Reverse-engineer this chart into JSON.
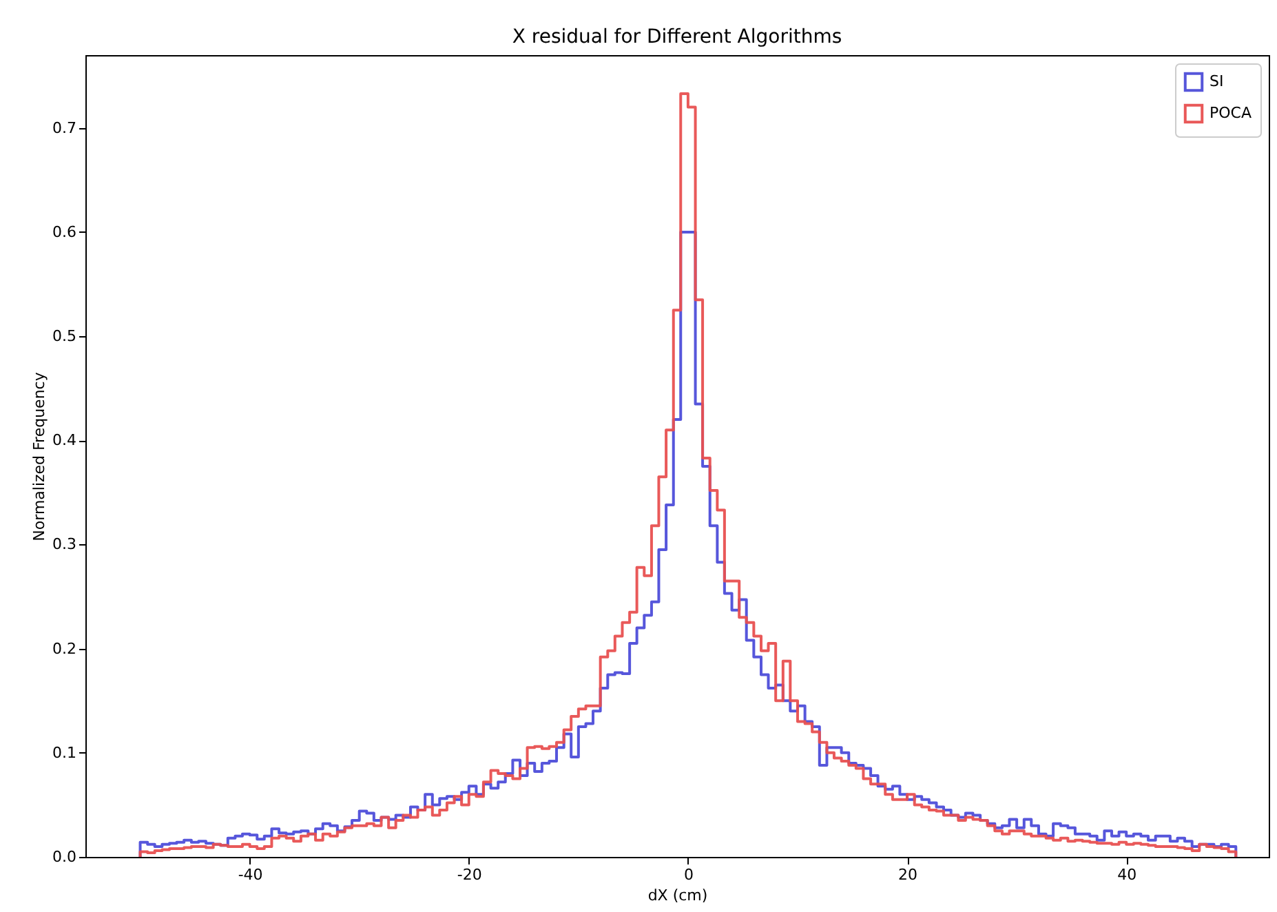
{
  "chart_data": {
    "type": "histogram",
    "title": "X residual for Different Algorithms",
    "xlabel": "dX (cm)",
    "ylabel": "Normalized Frequency",
    "bins": [
      -50,
      -49.33,
      -48.67,
      -48,
      -47.33,
      -46.67,
      -46,
      -45.33,
      -44.67,
      -44,
      -43.33,
      -42.67,
      -42,
      -41.33,
      -40.67,
      -40,
      -39.33,
      -38.67,
      -38,
      -37.33,
      -36.67,
      -36,
      -35.33,
      -34.67,
      -34,
      -33.33,
      -32.67,
      -32,
      -31.33,
      -30.67,
      -30,
      -29.33,
      -28.67,
      -28,
      -27.33,
      -26.67,
      -26,
      -25.33,
      -24.67,
      -24,
      -23.33,
      -22.67,
      -22,
      -21.33,
      -20.67,
      -20,
      -19.33,
      -18.67,
      -18,
      -17.33,
      -16.67,
      -16,
      -15.33,
      -14.67,
      -14,
      -13.33,
      -12.67,
      -12,
      -11.33,
      -10.67,
      -10,
      -9.33,
      -8.67,
      -8,
      -7.33,
      -6.67,
      -6,
      -5.33,
      -4.67,
      -4,
      -3.33,
      -2.67,
      -2,
      -1.33,
      -0.67,
      0,
      0.67,
      1.33,
      2,
      2.67,
      3.33,
      4,
      4.67,
      5.33,
      6,
      6.67,
      7.33,
      8,
      8.67,
      9.33,
      10,
      10.67,
      11.33,
      12,
      12.67,
      13.33,
      14,
      14.67,
      15.33,
      16,
      16.67,
      17.33,
      18,
      18.67,
      19.33,
      20,
      20.67,
      21.33,
      22,
      22.67,
      23.33,
      24,
      24.67,
      25.33,
      26,
      26.67,
      27.33,
      28,
      28.67,
      29.33,
      30,
      30.67,
      31.33,
      32,
      32.67,
      33.33,
      34,
      34.67,
      35.33,
      36,
      36.67,
      37.33,
      38,
      38.67,
      39.33,
      40,
      40.67,
      41.33,
      42,
      42.67,
      43.33,
      44,
      44.67,
      45.33,
      46,
      46.67,
      47.33,
      48,
      48.67,
      49.33,
      50
    ],
    "series": [
      {
        "name": "SI",
        "color": "#4d4dd9",
        "values": [
          0.014,
          0.012,
          0.01,
          0.012,
          0.013,
          0.014,
          0.016,
          0.014,
          0.015,
          0.013,
          0.012,
          0.011,
          0.018,
          0.02,
          0.022,
          0.021,
          0.017,
          0.02,
          0.027,
          0.023,
          0.022,
          0.024,
          0.025,
          0.022,
          0.027,
          0.032,
          0.03,
          0.025,
          0.029,
          0.035,
          0.044,
          0.042,
          0.035,
          0.038,
          0.036,
          0.04,
          0.038,
          0.048,
          0.045,
          0.06,
          0.05,
          0.056,
          0.058,
          0.055,
          0.062,
          0.068,
          0.06,
          0.07,
          0.066,
          0.072,
          0.08,
          0.093,
          0.078,
          0.09,
          0.082,
          0.09,
          0.092,
          0.105,
          0.118,
          0.096,
          0.125,
          0.128,
          0.14,
          0.162,
          0.175,
          0.177,
          0.176,
          0.205,
          0.22,
          0.232,
          0.245,
          0.295,
          0.338,
          0.42,
          0.6,
          0.6,
          0.435,
          0.375,
          0.318,
          0.283,
          0.253,
          0.237,
          0.247,
          0.208,
          0.192,
          0.175,
          0.162,
          0.165,
          0.15,
          0.14,
          0.145,
          0.13,
          0.125,
          0.088,
          0.105,
          0.105,
          0.1,
          0.09,
          0.088,
          0.085,
          0.078,
          0.068,
          0.065,
          0.068,
          0.06,
          0.055,
          0.058,
          0.055,
          0.052,
          0.048,
          0.045,
          0.04,
          0.038,
          0.042,
          0.04,
          0.035,
          0.032,
          0.028,
          0.03,
          0.036,
          0.028,
          0.036,
          0.03,
          0.022,
          0.02,
          0.032,
          0.03,
          0.028,
          0.022,
          0.022,
          0.02,
          0.016,
          0.025,
          0.02,
          0.024,
          0.02,
          0.022,
          0.02,
          0.016,
          0.02,
          0.02,
          0.015,
          0.018,
          0.015,
          0.01,
          0.012,
          0.012,
          0.01,
          0.012,
          0.01
        ]
      },
      {
        "name": "POCA",
        "color": "#e85050",
        "values": [
          0.005,
          0.004,
          0.006,
          0.007,
          0.008,
          0.008,
          0.009,
          0.01,
          0.01,
          0.009,
          0.012,
          0.011,
          0.01,
          0.01,
          0.012,
          0.01,
          0.008,
          0.01,
          0.018,
          0.02,
          0.018,
          0.015,
          0.02,
          0.022,
          0.016,
          0.022,
          0.02,
          0.024,
          0.028,
          0.03,
          0.03,
          0.032,
          0.03,
          0.038,
          0.028,
          0.035,
          0.04,
          0.038,
          0.045,
          0.048,
          0.04,
          0.045,
          0.052,
          0.058,
          0.05,
          0.06,
          0.058,
          0.072,
          0.083,
          0.08,
          0.078,
          0.075,
          0.085,
          0.105,
          0.106,
          0.104,
          0.106,
          0.11,
          0.122,
          0.135,
          0.142,
          0.145,
          0.145,
          0.192,
          0.198,
          0.212,
          0.225,
          0.235,
          0.278,
          0.27,
          0.318,
          0.365,
          0.41,
          0.525,
          0.733,
          0.72,
          0.535,
          0.383,
          0.352,
          0.333,
          0.265,
          0.265,
          0.23,
          0.225,
          0.212,
          0.198,
          0.205,
          0.15,
          0.188,
          0.15,
          0.13,
          0.128,
          0.12,
          0.11,
          0.1,
          0.095,
          0.092,
          0.088,
          0.085,
          0.075,
          0.07,
          0.07,
          0.06,
          0.055,
          0.055,
          0.06,
          0.05,
          0.048,
          0.045,
          0.044,
          0.04,
          0.04,
          0.035,
          0.038,
          0.036,
          0.035,
          0.03,
          0.025,
          0.022,
          0.025,
          0.025,
          0.022,
          0.02,
          0.02,
          0.018,
          0.016,
          0.018,
          0.015,
          0.016,
          0.015,
          0.014,
          0.013,
          0.013,
          0.012,
          0.014,
          0.012,
          0.013,
          0.012,
          0.011,
          0.01,
          0.01,
          0.01,
          0.009,
          0.008,
          0.006,
          0.012,
          0.01,
          0.009,
          0.008,
          0.005
        ]
      }
    ],
    "xlim": [
      -55,
      53
    ],
    "ylim": [
      0,
      0.77
    ],
    "xticks": [
      -40,
      -20,
      0,
      20,
      40
    ],
    "yticks": [
      {
        "value": 0,
        "label": "0.0"
      },
      0.1,
      0.2,
      0.3,
      0.4,
      0.5,
      0.6,
      0.7
    ],
    "legend": "top right",
    "grid": false
  }
}
